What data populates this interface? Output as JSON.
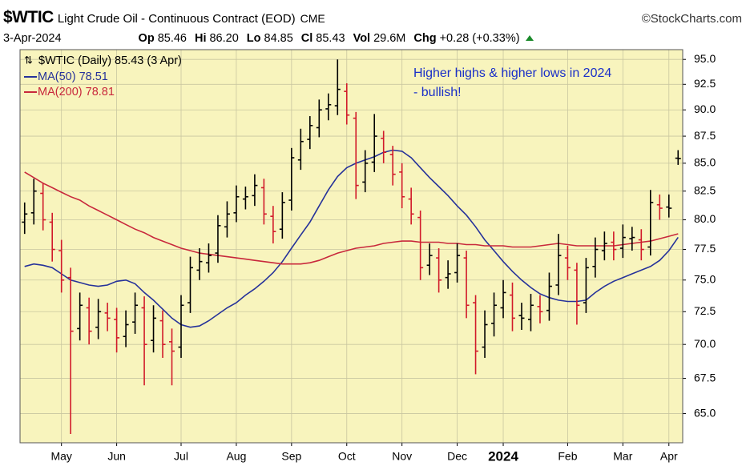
{
  "chart_data": {
    "type": "ohlc",
    "title": "$WTIC",
    "subtitle": "Light Crude Oil - Continuous Contract (EOD)",
    "exchange": "CME",
    "source": "©StockCharts.com",
    "date": "3-Apr-2024",
    "quote": [
      {
        "label": "Op",
        "value": "85.46"
      },
      {
        "label": "Hi",
        "value": "86.20"
      },
      {
        "label": "Lo",
        "value": "84.85"
      },
      {
        "label": "Cl",
        "value": "85.43"
      },
      {
        "label": "Vol",
        "value": "29.6M"
      },
      {
        "label": "Chg",
        "value": "+0.28 (+0.33%)"
      }
    ],
    "price_label": "$WTIC (Daily) 85.43 (3 Apr)",
    "annotation": [
      "Higher highs & higher lows in 2024",
      "- bullish!"
    ],
    "categories": [
      null,
      null,
      null,
      null,
      "May",
      null,
      null,
      null,
      null,
      null,
      "Jun",
      null,
      null,
      null,
      null,
      null,
      null,
      "Jul",
      null,
      null,
      null,
      null,
      null,
      "Aug",
      null,
      null,
      null,
      null,
      null,
      "Sep",
      null,
      null,
      null,
      null,
      null,
      "Oct",
      null,
      null,
      null,
      null,
      null,
      "Nov",
      null,
      null,
      null,
      null,
      null,
      "Dec",
      null,
      null,
      null,
      null,
      "2024",
      null,
      null,
      null,
      null,
      null,
      null,
      "Feb",
      null,
      null,
      null,
      null,
      null,
      "Mar",
      null,
      null,
      null,
      null,
      "Apr",
      null
    ],
    "open": [
      79.8,
      80.6,
      82.3,
      79.8,
      77.4,
      75.2,
      71.2,
      72.8,
      71.3,
      72.4,
      71.9,
      70.6,
      71.7,
      72.8,
      70.3,
      71.8,
      70.2,
      69.8,
      73.2,
      75.8,
      76.4,
      77.2,
      79.4,
      80.6,
      81.8,
      82.1,
      82.8,
      80.3,
      79.2,
      81.7,
      85.3,
      87.2,
      88.3,
      90.1,
      90.4,
      91.8,
      89.2,
      83.3,
      85.1,
      87.3,
      85.8,
      84.2,
      81.8,
      80.2,
      76.2,
      76.8,
      75.2,
      75.6,
      76.8,
      73.2,
      69.8,
      71.6,
      72.8,
      73.8,
      72.2,
      71.9,
      72.9,
      72.6,
      74.6,
      76.8,
      75.8,
      73.2,
      76.1,
      77.4,
      78.1,
      77.6,
      78.4,
      78.3,
      77.7,
      81.3,
      81.1,
      85.46
    ],
    "high": [
      81.5,
      83.6,
      83.2,
      80.6,
      78.3,
      76,
      74,
      73.6,
      73.5,
      73.2,
      72.8,
      72.6,
      74,
      73.7,
      73,
      72.6,
      71.2,
      73.8,
      76.9,
      77.6,
      78,
      80.4,
      81.6,
      83,
      82.9,
      84,
      83.6,
      81.2,
      82.4,
      86.4,
      88.2,
      89.4,
      91,
      91.6,
      95,
      92.6,
      89.8,
      86.2,
      89.6,
      88,
      86.6,
      85,
      82.8,
      80.8,
      78,
      77.6,
      76.6,
      78,
      77.4,
      73.8,
      72.6,
      74,
      75,
      74.8,
      73.2,
      73.9,
      73.8,
      75.6,
      78.8,
      77.8,
      76.4,
      76.8,
      78.5,
      79,
      79,
      79.6,
      79.4,
      79.2,
      82.6,
      82.2,
      82.2,
      86.2
    ],
    "low": [
      78.8,
      79.6,
      79.1,
      76.5,
      74,
      63.6,
      70.3,
      70,
      70.4,
      71,
      69.4,
      69.8,
      70.8,
      67,
      69.4,
      69,
      67,
      69,
      72.4,
      75,
      75.6,
      76.4,
      78.5,
      79.8,
      80.9,
      81.2,
      79.6,
      78,
      78.4,
      80.8,
      84.4,
      86.3,
      87.4,
      89,
      89.5,
      88.6,
      81.8,
      82.4,
      84.2,
      85,
      83,
      81,
      79.6,
      75,
      75.4,
      74,
      74.3,
      74.8,
      72,
      67.8,
      69,
      70.6,
      72,
      71,
      71.1,
      71,
      71.6,
      71.8,
      73.8,
      75,
      71.5,
      72.4,
      75.2,
      76.6,
      76.6,
      76.8,
      77.4,
      76.6,
      77,
      80,
      80.2,
      84.85
    ],
    "close": [
      80.5,
      82.5,
      80,
      77.5,
      75,
      71,
      73,
      71,
      72.5,
      72,
      70.5,
      71.5,
      73,
      70,
      72,
      70,
      69.5,
      73,
      76,
      76.5,
      77,
      79.5,
      80.5,
      82,
      82,
      83,
      80.5,
      79,
      81.5,
      85.5,
      87,
      88.5,
      90,
      90.5,
      92,
      89.5,
      83,
      85,
      87.5,
      86,
      84,
      82,
      80.5,
      76,
      77,
      75,
      75.5,
      77,
      73,
      69.5,
      71.5,
      73,
      74,
      72,
      72,
      73,
      72.5,
      74.5,
      77,
      76,
      73,
      76,
      77.5,
      78,
      77.5,
      78.5,
      78.5,
      77.5,
      81.5,
      81,
      81,
      85.43
    ],
    "up_color": "#000000",
    "down_color": "#d11a2a",
    "series": [
      {
        "name": "MA(50) 78.51",
        "color": "#26329a",
        "values": [
          76.1,
          76.3,
          76.2,
          76,
          75.5,
          75,
          74.8,
          74.6,
          74.5,
          74.6,
          74.9,
          75,
          74.7,
          74,
          73.4,
          72.7,
          72,
          71.5,
          71.3,
          71.4,
          71.8,
          72.3,
          72.8,
          73.2,
          73.8,
          74.3,
          74.9,
          75.6,
          76.5,
          77.6,
          78.7,
          79.8,
          81.2,
          82.6,
          83.8,
          84.6,
          85,
          85.3,
          85.6,
          86,
          86.2,
          86.1,
          85.5,
          84.6,
          83.7,
          82.9,
          82.1,
          81.2,
          80.4,
          79.4,
          78.3,
          77.4,
          76.5,
          75.7,
          75,
          74.4,
          73.9,
          73.6,
          73.4,
          73.3,
          73.3,
          73.4,
          74,
          74.5,
          74.9,
          75.2,
          75.5,
          75.8,
          76.1,
          76.6,
          77.4,
          78.51
        ]
      },
      {
        "name": "MA(200) 78.81",
        "color": "#c8283c",
        "values": [
          84.2,
          83.7,
          83.2,
          82.8,
          82.4,
          82,
          81.7,
          81.2,
          80.8,
          80.4,
          80,
          79.6,
          79.2,
          78.9,
          78.5,
          78.2,
          77.9,
          77.6,
          77.4,
          77.2,
          77.1,
          77,
          76.9,
          76.8,
          76.7,
          76.6,
          76.5,
          76.4,
          76.3,
          76.3,
          76.3,
          76.4,
          76.6,
          76.9,
          77.2,
          77.4,
          77.6,
          77.7,
          77.8,
          78,
          78.1,
          78.2,
          78.2,
          78.1,
          78.1,
          78.1,
          78,
          78,
          77.9,
          77.9,
          77.8,
          77.8,
          77.8,
          77.7,
          77.7,
          77.7,
          77.8,
          77.9,
          78,
          77.9,
          77.8,
          77.8,
          77.8,
          77.8,
          77.8,
          77.9,
          78,
          78.1,
          78.2,
          78.4,
          78.6,
          78.81
        ]
      }
    ],
    "ylim": [
      63,
      96
    ],
    "yticks": [
      {
        "value": 65,
        "label": "65.0"
      },
      {
        "value": 67.5,
        "label": "67.5"
      },
      {
        "value": 70,
        "label": "70.0"
      },
      {
        "value": 72.5,
        "label": "72.5"
      },
      {
        "value": 75,
        "label": "75.0"
      },
      {
        "value": 77.5,
        "label": "77.5"
      },
      {
        "value": 80,
        "label": "80.0"
      },
      {
        "value": 82.5,
        "label": "82.5"
      },
      {
        "value": 85,
        "label": "85.0"
      },
      {
        "value": 87.5,
        "label": "87.5"
      },
      {
        "value": 90,
        "label": "90.0"
      },
      {
        "value": 92.5,
        "label": "92.5"
      },
      {
        "value": 95,
        "label": "95.0"
      }
    ],
    "log_scale": true,
    "grid": true,
    "plot_color": "#f8f4bd",
    "annotation_color": "#1a2fc8"
  }
}
